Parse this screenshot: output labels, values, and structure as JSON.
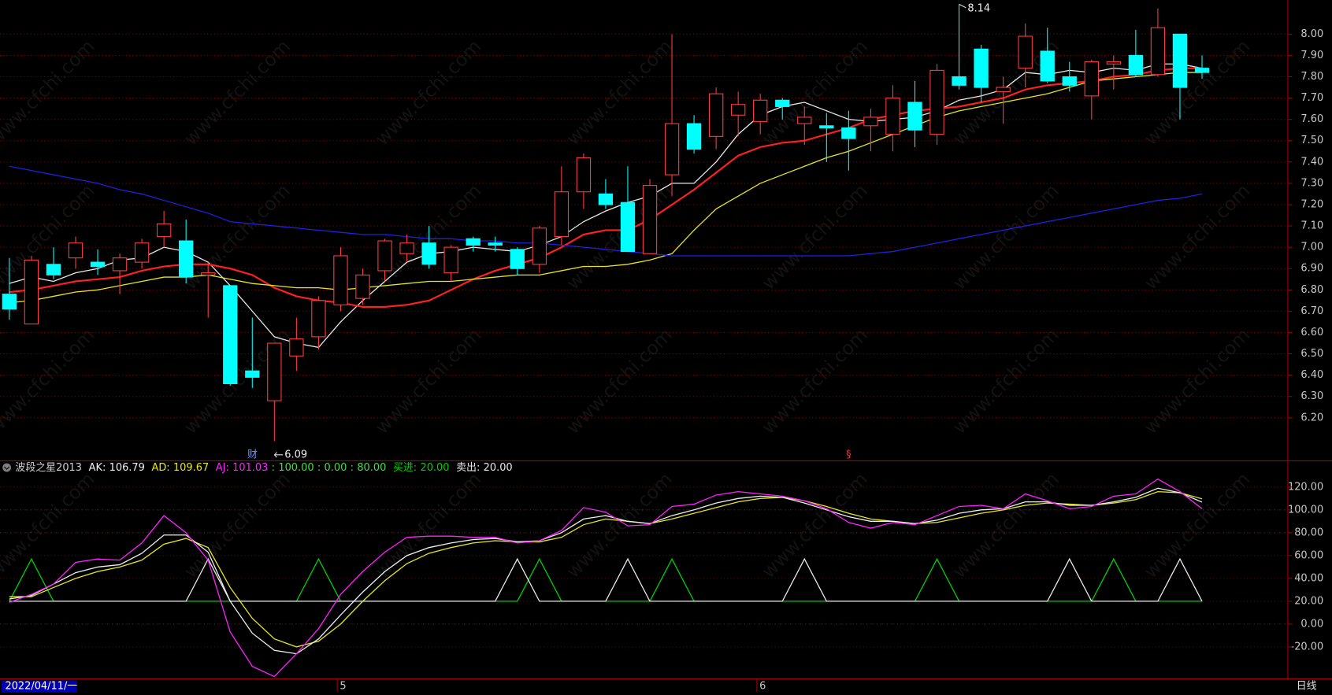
{
  "chart_data": [
    {
      "type": "candlestick",
      "categories": [
        null,
        null,
        null,
        null,
        null,
        null,
        null,
        null,
        null,
        null,
        null,
        null,
        null,
        null,
        null,
        "5",
        null,
        null,
        null,
        null,
        null,
        null,
        null,
        null,
        null,
        null,
        null,
        null,
        null,
        null,
        null,
        null,
        null,
        null,
        "6",
        null,
        null,
        null,
        null,
        null,
        null,
        null,
        null,
        null,
        null,
        null,
        null,
        null,
        null,
        null,
        null,
        null,
        null,
        null,
        null
      ],
      "open": [
        6.78,
        6.64,
        6.92,
        6.95,
        6.93,
        6.89,
        6.93,
        7.05,
        7.03,
        6.87,
        6.82,
        6.42,
        6.28,
        6.49,
        6.58,
        6.73,
        6.76,
        6.89,
        6.97,
        7.02,
        6.88,
        7.04,
        7.02,
        6.99,
        6.92,
        7.05,
        7.26,
        7.25,
        7.21,
        6.97,
        7.34,
        7.58,
        7.52,
        7.62,
        7.59,
        7.69,
        7.58,
        7.57,
        7.56,
        7.57,
        7.53,
        7.68,
        7.53,
        7.8,
        7.93,
        7.73,
        7.84,
        7.92,
        7.8,
        7.71,
        7.86,
        7.9,
        7.81,
        8.0,
        7.84
      ],
      "high": [
        6.95,
        6.96,
        7.0,
        7.05,
        6.99,
        6.97,
        7.04,
        7.17,
        7.13,
        6.93,
        6.82,
        6.67,
        6.55,
        6.67,
        6.77,
        7.0,
        6.9,
        7.04,
        7.06,
        7.1,
        7.01,
        7.05,
        7.05,
        7.0,
        7.1,
        7.38,
        7.44,
        7.32,
        7.38,
        7.32,
        8.0,
        7.62,
        7.75,
        7.73,
        7.72,
        7.7,
        7.66,
        7.63,
        7.64,
        7.65,
        7.76,
        7.78,
        7.86,
        8.14,
        7.95,
        7.8,
        8.05,
        8.03,
        7.87,
        7.88,
        7.9,
        8.02,
        8.12,
        8.0,
        7.9
      ],
      "low": [
        6.66,
        6.64,
        6.85,
        6.9,
        6.87,
        6.78,
        6.9,
        7.0,
        6.83,
        6.67,
        6.35,
        6.34,
        6.09,
        6.42,
        6.52,
        6.7,
        6.73,
        6.84,
        6.93,
        6.9,
        6.84,
        6.98,
        6.98,
        6.87,
        6.88,
        7.01,
        7.18,
        7.18,
        6.98,
        6.97,
        7.24,
        7.44,
        7.46,
        7.52,
        7.53,
        7.6,
        7.48,
        7.4,
        7.36,
        7.45,
        7.45,
        7.47,
        7.48,
        7.74,
        7.68,
        7.58,
        7.75,
        7.77,
        7.73,
        7.6,
        7.74,
        7.8,
        7.8,
        7.6,
        7.79
      ],
      "close": [
        6.71,
        6.94,
        6.87,
        7.02,
        6.91,
        6.95,
        7.02,
        7.11,
        6.86,
        6.88,
        6.36,
        6.39,
        6.55,
        6.57,
        6.75,
        6.96,
        6.87,
        7.03,
        7.02,
        6.92,
        7.0,
        7.01,
        7.01,
        6.9,
        7.09,
        7.26,
        7.42,
        7.2,
        6.98,
        7.29,
        7.58,
        7.46,
        7.72,
        7.67,
        7.69,
        7.66,
        7.61,
        7.56,
        7.51,
        7.61,
        7.7,
        7.55,
        7.83,
        7.76,
        7.75,
        7.75,
        7.99,
        7.78,
        7.76,
        7.87,
        7.87,
        7.81,
        8.03,
        7.75,
        7.82
      ],
      "up_color": "#ff3c3c",
      "down_color": "#00ffff",
      "high_label": "8.14",
      "low_label": "6.09",
      "event_markers": [
        null,
        null,
        null,
        null,
        null,
        null,
        null,
        null,
        null,
        null,
        null,
        "财",
        null,
        null,
        null,
        null,
        null,
        null,
        null,
        null,
        null,
        null,
        null,
        null,
        null,
        null,
        null,
        null,
        null,
        null,
        null,
        null,
        null,
        null,
        null,
        null,
        null,
        null,
        "§",
        null,
        null,
        null,
        null,
        null,
        null,
        null,
        null,
        null,
        null,
        null,
        null,
        null,
        null,
        null,
        null
      ],
      "series": [
        {
          "color": "#e8e8e8",
          "values": [
            6.83,
            6.86,
            6.84,
            6.88,
            6.9,
            6.94,
            6.95,
            7.0,
            6.98,
            6.93,
            6.82,
            6.7,
            6.58,
            6.55,
            6.53,
            6.65,
            6.75,
            6.84,
            6.93,
            6.97,
            6.98,
            7.0,
            6.99,
            6.98,
            7.01,
            7.05,
            7.12,
            7.17,
            7.21,
            7.24,
            7.3,
            7.3,
            7.4,
            7.53,
            7.62,
            7.66,
            7.68,
            7.64,
            7.6,
            7.59,
            7.6,
            7.61,
            7.64,
            7.69,
            7.71,
            7.74,
            7.82,
            7.81,
            7.83,
            7.82,
            7.84,
            7.83,
            7.86,
            7.86,
            7.84
          ]
        },
        {
          "color": "#ff2020",
          "values": [
            6.79,
            6.8,
            6.82,
            6.84,
            6.85,
            6.86,
            6.89,
            6.91,
            6.92,
            6.92,
            6.9,
            6.87,
            6.81,
            6.77,
            6.75,
            6.74,
            6.72,
            6.72,
            6.73,
            6.75,
            6.8,
            6.85,
            6.89,
            6.92,
            6.95,
            7.0,
            7.06,
            7.08,
            7.08,
            7.13,
            7.2,
            7.27,
            7.35,
            7.43,
            7.47,
            7.49,
            7.5,
            7.53,
            7.56,
            7.6,
            7.62,
            7.64,
            7.65,
            7.66,
            7.68,
            7.7,
            7.74,
            7.76,
            7.77,
            7.78,
            7.8,
            7.81,
            7.83,
            7.84,
            7.84
          ]
        },
        {
          "color": "#e6e620",
          "values": [
            6.74,
            6.75,
            6.77,
            6.79,
            6.8,
            6.82,
            6.84,
            6.86,
            6.86,
            6.87,
            6.85,
            6.83,
            6.82,
            6.81,
            6.81,
            6.8,
            6.81,
            6.82,
            6.83,
            6.84,
            6.84,
            6.85,
            6.86,
            6.87,
            6.87,
            6.89,
            6.91,
            6.91,
            6.92,
            6.94,
            6.97,
            7.08,
            7.18,
            7.24,
            7.3,
            7.34,
            7.38,
            7.42,
            7.45,
            7.49,
            7.53,
            7.57,
            7.61,
            7.64,
            7.66,
            7.68,
            7.7,
            7.72,
            7.75,
            7.78,
            7.79,
            7.8,
            7.81,
            7.82,
            7.82
          ]
        },
        {
          "color": "#2020e0",
          "values": [
            7.38,
            7.36,
            7.34,
            7.32,
            7.3,
            7.27,
            7.25,
            7.22,
            7.19,
            7.16,
            7.12,
            7.11,
            7.1,
            7.09,
            7.08,
            7.07,
            7.06,
            7.06,
            7.05,
            7.04,
            7.04,
            7.03,
            7.03,
            7.02,
            7.02,
            7.01,
            7.0,
            6.99,
            6.98,
            6.97,
            6.96,
            6.96,
            6.96,
            6.96,
            6.96,
            6.96,
            6.96,
            6.96,
            6.96,
            6.97,
            6.98,
            7.0,
            7.02,
            7.04,
            7.06,
            7.08,
            7.1,
            7.12,
            7.14,
            7.16,
            7.18,
            7.2,
            7.22,
            7.23,
            7.25
          ]
        }
      ],
      "ylim": [
        6.05,
        8.16
      ],
      "yticks": [
        {
          "value": 6.2,
          "label": "6.20"
        },
        {
          "value": 6.3,
          "label": "6.30"
        },
        {
          "value": 6.4,
          "label": "6.40"
        },
        {
          "value": 6.5,
          "label": "6.50"
        },
        {
          "value": 6.6,
          "label": "6.60"
        },
        {
          "value": 6.7,
          "label": "6.70"
        },
        {
          "value": 6.8,
          "label": "6.80"
        },
        {
          "value": 6.9,
          "label": "6.90"
        },
        {
          "value": 7.0,
          "label": "7.00"
        },
        {
          "value": 7.1,
          "label": "7.10"
        },
        {
          "value": 7.2,
          "label": "7.20"
        },
        {
          "value": 7.3,
          "label": "7.30"
        },
        {
          "value": 7.4,
          "label": "7.40"
        },
        {
          "value": 7.5,
          "label": "7.50"
        },
        {
          "value": 7.6,
          "label": "7.60"
        },
        {
          "value": 7.7,
          "label": "7.70"
        },
        {
          "value": 7.8,
          "label": "7.80"
        },
        {
          "value": 7.9,
          "label": "7.90"
        },
        {
          "value": 8.0,
          "label": "8.00"
        }
      ],
      "grid": true
    },
    {
      "type": "line",
      "title": "波段之星2013",
      "separator": ":",
      "series": [
        {
          "name": "AK",
          "color": "#f0f0f0",
          "last_label": "106.79",
          "values": [
            22,
            25,
            35,
            45,
            50,
            52,
            62,
            78,
            78,
            63,
            20,
            -8,
            -23,
            -26,
            -13,
            8,
            28,
            46,
            60,
            67,
            71,
            74,
            75,
            72,
            73,
            80,
            92,
            95,
            90,
            88,
            95,
            100,
            106,
            110,
            112,
            111,
            106,
            100,
            94,
            90,
            90,
            88,
            91,
            97,
            100,
            101,
            107,
            107,
            104,
            104,
            107,
            111,
            119,
            115,
            106.79
          ]
        },
        {
          "name": "AD",
          "color": "#e6e620",
          "last_label": "109.67",
          "values": [
            24,
            24,
            32,
            40,
            46,
            50,
            56,
            70,
            75,
            67,
            32,
            5,
            -13,
            -20,
            -15,
            0,
            20,
            38,
            53,
            62,
            67,
            71,
            73,
            72,
            72,
            76,
            87,
            92,
            90,
            88,
            92,
            97,
            102,
            107,
            110,
            111,
            108,
            103,
            97,
            92,
            90,
            88,
            89,
            93,
            97,
            100,
            104,
            106,
            105,
            104,
            106,
            109,
            116,
            115,
            109.67
          ]
        },
        {
          "name": "AJ",
          "color": "#ff20ff",
          "last_label": "101.03",
          "values": [
            19,
            26,
            35,
            54,
            57,
            56,
            71,
            95,
            80,
            56,
            -7,
            -37,
            -46,
            -26,
            -4,
            26,
            46,
            63,
            76,
            77,
            77,
            76,
            76,
            71,
            73,
            82,
            102,
            98,
            86,
            87,
            103,
            105,
            113,
            116,
            114,
            112,
            108,
            101,
            89,
            84,
            89,
            87,
            95,
            103,
            104,
            101,
            114,
            108,
            101,
            103,
            112,
            114,
            127,
            116,
            101.03
          ]
        },
        {
          "name": "买进",
          "color": "#00d000",
          "last_label": "20.00",
          "values": [
            20,
            57,
            20,
            20,
            20,
            20,
            20,
            20,
            20,
            20,
            20,
            20,
            20,
            20,
            57,
            20,
            20,
            20,
            20,
            20,
            20,
            20,
            20,
            20,
            57,
            20,
            20,
            20,
            20,
            20,
            57,
            20,
            20,
            20,
            20,
            20,
            20,
            20,
            20,
            20,
            20,
            20,
            57,
            20,
            20,
            20,
            20,
            20,
            20,
            20,
            57,
            20,
            20,
            20,
            20
          ]
        },
        {
          "name": "卖出",
          "color": "#e8e8e8",
          "last_label": "20.00",
          "values": [
            20,
            20,
            20,
            20,
            20,
            20,
            20,
            20,
            20,
            57,
            20,
            20,
            20,
            20,
            20,
            20,
            20,
            20,
            20,
            20,
            20,
            20,
            20,
            57,
            20,
            20,
            20,
            20,
            57,
            20,
            20,
            20,
            20,
            20,
            20,
            20,
            57,
            20,
            20,
            20,
            20,
            20,
            20,
            20,
            20,
            20,
            20,
            20,
            57,
            20,
            20,
            20,
            20,
            57,
            20
          ]
        }
      ],
      "reference_lines": [
        {
          "value": 100,
          "label": "100.00"
        },
        {
          "value": 0,
          "label": "0.00"
        },
        {
          "value": 80,
          "label": "80.00"
        }
      ],
      "reference_color": "#40e040",
      "ylim": [
        -48,
        143
      ],
      "yticks": [
        {
          "value": -20,
          "label": "-20.00"
        },
        {
          "value": 0,
          "label": "0.00"
        },
        {
          "value": 20,
          "label": "20.00"
        },
        {
          "value": 40,
          "label": "40.00"
        },
        {
          "value": 60,
          "label": "60.00"
        },
        {
          "value": 80,
          "label": "80.00"
        },
        {
          "value": 100,
          "label": "100.00"
        },
        {
          "value": 120,
          "label": "120.00"
        }
      ],
      "grid": true
    }
  ],
  "watermark": "www.cfchi.com",
  "footer": {
    "date": "2022/04/11/一",
    "period": "日线"
  }
}
